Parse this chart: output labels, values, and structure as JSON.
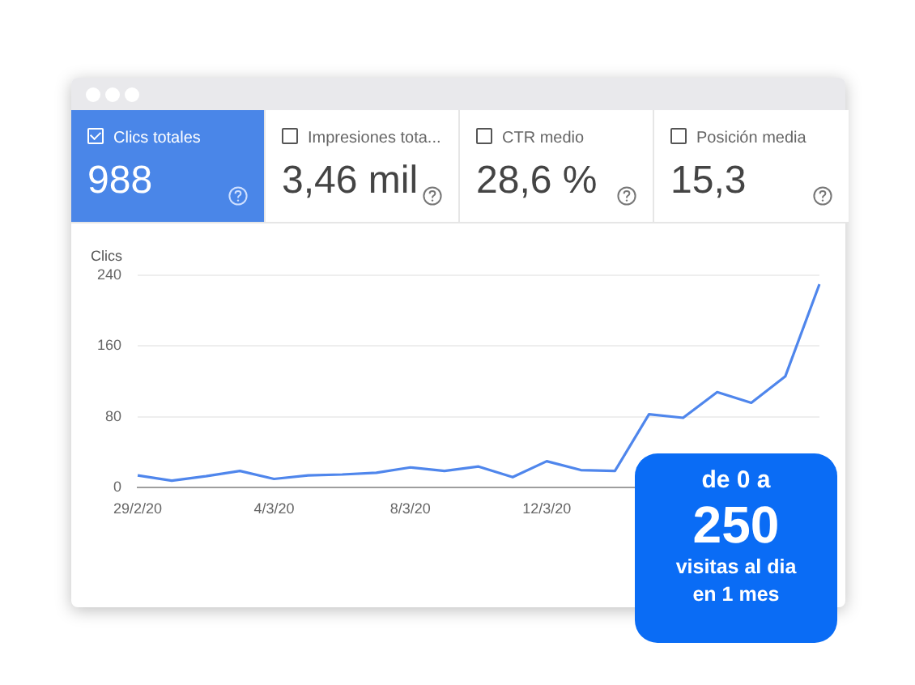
{
  "chart_data": {
    "type": "line",
    "ylabel": "Clics",
    "categories": [
      "29/2/20",
      null,
      null,
      null,
      "4/3/20",
      null,
      null,
      null,
      "8/3/20",
      null,
      null,
      null,
      "12/3/20",
      null,
      null,
      null,
      null,
      null,
      null,
      null,
      null
    ],
    "series": [
      {
        "color": "#4f86ec",
        "values": [
          14,
          8,
          13,
          19,
          10,
          14,
          15,
          17,
          23,
          19,
          24,
          12,
          30,
          20,
          19,
          83,
          79,
          108,
          96,
          126,
          230
        ]
      }
    ],
    "ylim": [
      0,
      240
    ],
    "yticks": [
      0,
      80,
      160,
      240
    ],
    "grid": "y",
    "legend": false,
    "marker": "none",
    "line_style": "solid",
    "annotations": [
      "Clics totales",
      "988",
      "Impresiones tota...",
      "3,46 mil",
      "CTR medio",
      "28,6 %",
      "Posición media",
      "15,3",
      "de 0 a",
      "250",
      "visitas al dia",
      "en 1 mes"
    ]
  }
}
